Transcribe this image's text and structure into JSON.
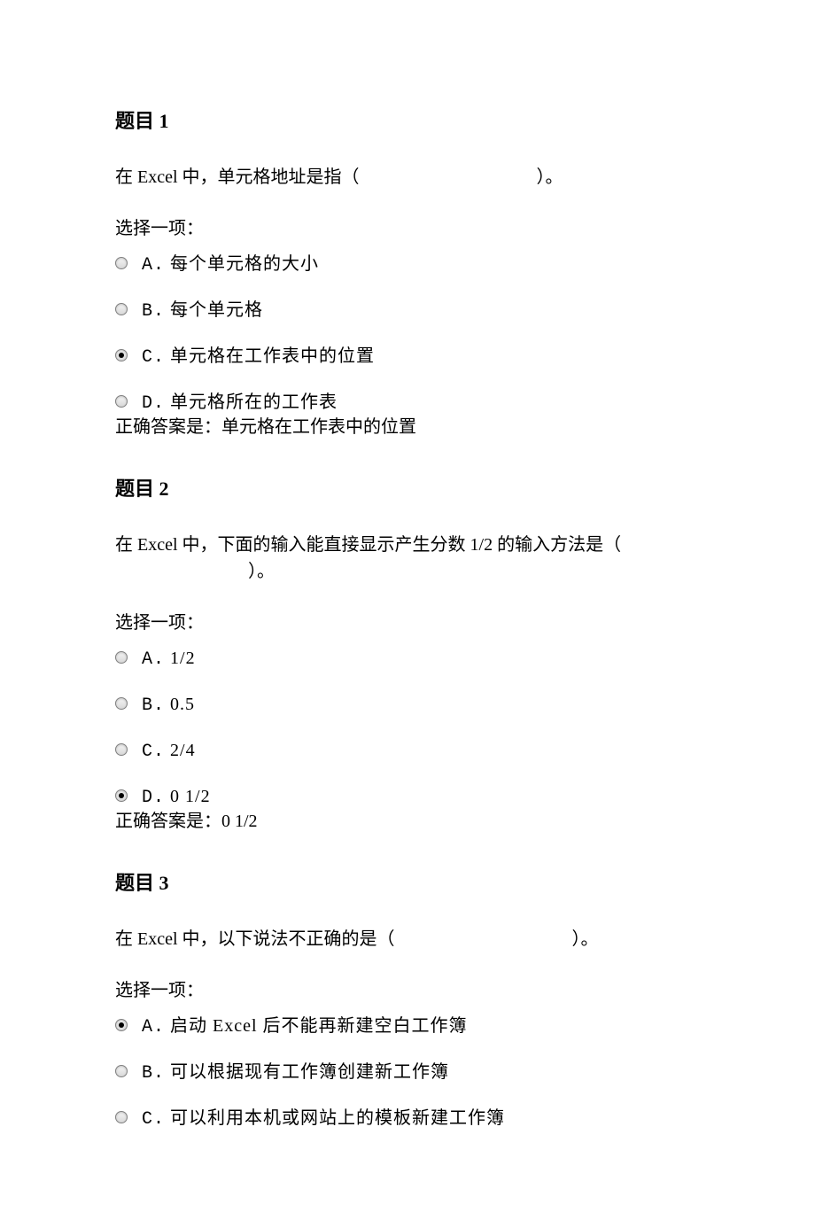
{
  "background_color": "#ffffff",
  "text_color": "#000000",
  "font_family": "SimSun",
  "title_fontsize": 22,
  "body_fontsize": 20,
  "questions": [
    {
      "title": "题目 1",
      "text_prefix": "在 Excel 中，单元格地址是指（",
      "text_suffix": "）。",
      "select_label": "选择一项：",
      "options": [
        {
          "letter": "A.",
          "text": "每个单元格的大小",
          "selected": false
        },
        {
          "letter": "B.",
          "text": "每个单元格",
          "selected": false
        },
        {
          "letter": "C.",
          "text": "单元格在工作表中的位置",
          "selected": true
        },
        {
          "letter": "D.",
          "text": "单元格所在的工作表",
          "selected": false
        }
      ],
      "answer_label": "正确答案是：",
      "answer_value": "单元格在工作表中的位置"
    },
    {
      "title": "题目 2",
      "text_prefix": "在 Excel 中，下面的输入能直接显示产生分数 1/2 的输入方法是（",
      "text_suffix": "）。",
      "select_label": "选择一项：",
      "options": [
        {
          "letter": "A.",
          "text": "1/2",
          "selected": false
        },
        {
          "letter": "B.",
          "text": "0.5",
          "selected": false
        },
        {
          "letter": "C.",
          "text": "2/4",
          "selected": false
        },
        {
          "letter": "D.",
          "text": "0 1/2",
          "selected": true
        }
      ],
      "answer_label": "正确答案是：",
      "answer_value": "0 1/2"
    },
    {
      "title": "题目 3",
      "text_prefix": "在 Excel 中，以下说法不正确的是（",
      "text_suffix": "）。",
      "select_label": "选择一项：",
      "options": [
        {
          "letter": "A.",
          "text": "启动 Excel 后不能再新建空白工作簿",
          "selected": true
        },
        {
          "letter": "B.",
          "text": "可以根据现有工作簿创建新工作簿",
          "selected": false
        },
        {
          "letter": "C.",
          "text": "可以利用本机或网站上的模板新建工作簿",
          "selected": false
        }
      ],
      "answer_label": "",
      "answer_value": ""
    }
  ]
}
